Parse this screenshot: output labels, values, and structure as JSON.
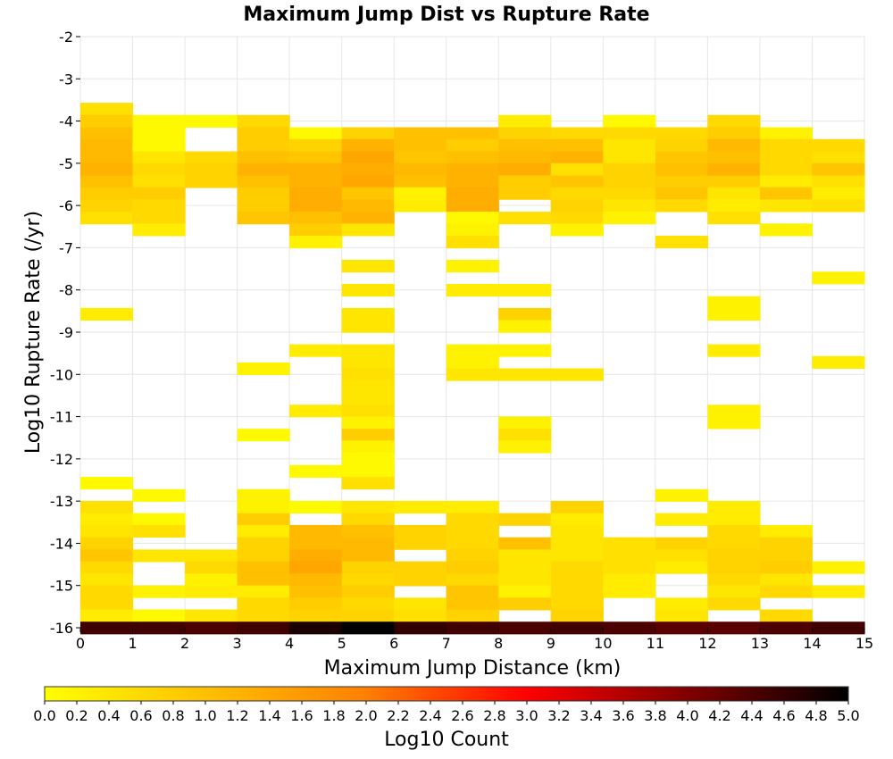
{
  "chart_data": {
    "type": "heatmap",
    "title": "Maximum Jump Dist vs Rupture Rate",
    "xlabel": "Maximum Jump Distance (km)",
    "ylabel": "Log10 Rupture Rate (/yr)",
    "xlim": [
      0,
      15
    ],
    "ylim": [
      -16,
      -2
    ],
    "x_ticks": [
      "0",
      "1",
      "2",
      "3",
      "4",
      "5",
      "6",
      "7",
      "8",
      "9",
      "10",
      "11",
      "12",
      "13",
      "14",
      "15"
    ],
    "y_ticks": [
      "-2",
      "-3",
      "-4",
      "-5",
      "-6",
      "-7",
      "-8",
      "-9",
      "-10",
      "-11",
      "-12",
      "-13",
      "-14",
      "-15",
      "-16"
    ],
    "x_bin_width": 1,
    "y_bin_height": 0.286,
    "grid": true,
    "colorbar": {
      "label": "Log10 Count",
      "min": 0.0,
      "max": 5.0,
      "ticks": [
        "0.0",
        "0.2",
        "0.4",
        "0.6",
        "0.8",
        "1.0",
        "1.2",
        "1.4",
        "1.6",
        "1.8",
        "2.0",
        "2.2",
        "2.4",
        "2.6",
        "2.8",
        "3.0",
        "3.2",
        "3.4",
        "3.6",
        "3.8",
        "4.0",
        "4.2",
        "4.4",
        "4.6",
        "4.8",
        "5.0"
      ],
      "colors": [
        "#ffff00",
        "#ffc000",
        "#ff8000",
        "#ff0000",
        "#800000",
        "#000000"
      ]
    },
    "cells_columns": [
      "x_start",
      "log10_rate_center",
      "log10_count"
    ],
    "cells": [
      [
        0,
        -3.71,
        0.5
      ],
      [
        0,
        -4.0,
        0.8
      ],
      [
        0,
        -4.29,
        1.0
      ],
      [
        0,
        -4.57,
        1.1
      ],
      [
        0,
        -4.86,
        1.1
      ],
      [
        0,
        -5.14,
        1.2
      ],
      [
        0,
        -5.43,
        1.0
      ],
      [
        0,
        -5.71,
        0.8
      ],
      [
        0,
        -6.0,
        0.7
      ],
      [
        0,
        -6.29,
        0.5
      ],
      [
        0,
        -8.57,
        0.3
      ],
      [
        0,
        -12.57,
        0.1
      ],
      [
        0,
        -13.14,
        0.5
      ],
      [
        0,
        -13.43,
        0.3
      ],
      [
        0,
        -13.71,
        0.4
      ],
      [
        0,
        -14.0,
        0.7
      ],
      [
        0,
        -14.29,
        0.9
      ],
      [
        0,
        -14.57,
        0.6
      ],
      [
        0,
        -14.86,
        0.4
      ],
      [
        0,
        -15.14,
        0.6
      ],
      [
        0,
        -15.43,
        0.6
      ],
      [
        0,
        -15.71,
        0.3
      ],
      [
        0,
        -16.0,
        4.5
      ],
      [
        1,
        -4.0,
        0.1
      ],
      [
        1,
        -4.29,
        0.1
      ],
      [
        1,
        -4.57,
        0.1
      ],
      [
        1,
        -4.86,
        0.4
      ],
      [
        1,
        -5.14,
        0.6
      ],
      [
        1,
        -5.43,
        0.5
      ],
      [
        1,
        -5.71,
        0.8
      ],
      [
        1,
        -6.0,
        0.6
      ],
      [
        1,
        -6.29,
        0.6
      ],
      [
        1,
        -6.57,
        0.3
      ],
      [
        1,
        -12.86,
        0.1
      ],
      [
        1,
        -13.43,
        0.1
      ],
      [
        1,
        -13.71,
        0.5
      ],
      [
        1,
        -14.29,
        0.4
      ],
      [
        1,
        -15.14,
        0.2
      ],
      [
        1,
        -15.71,
        0.1
      ],
      [
        1,
        -16.0,
        4.5
      ],
      [
        2,
        -4.0,
        0.1
      ],
      [
        2,
        -4.86,
        0.6
      ],
      [
        2,
        -5.14,
        0.7
      ],
      [
        2,
        -5.43,
        0.7
      ],
      [
        2,
        -14.29,
        0.4
      ],
      [
        2,
        -14.57,
        0.6
      ],
      [
        2,
        -14.86,
        0.2
      ],
      [
        2,
        -15.14,
        0.3
      ],
      [
        2,
        -15.71,
        0.4
      ],
      [
        2,
        -16.0,
        4.4
      ],
      [
        3,
        -4.0,
        0.6
      ],
      [
        3,
        -4.29,
        0.8
      ],
      [
        3,
        -4.57,
        0.8
      ],
      [
        3,
        -4.86,
        1.0
      ],
      [
        3,
        -5.14,
        1.2
      ],
      [
        3,
        -5.43,
        1.0
      ],
      [
        3,
        -5.71,
        0.8
      ],
      [
        3,
        -6.0,
        0.8
      ],
      [
        3,
        -6.29,
        0.9
      ],
      [
        3,
        -9.86,
        0.2
      ],
      [
        3,
        -11.43,
        0.1
      ],
      [
        3,
        -12.86,
        0.2
      ],
      [
        3,
        -13.14,
        0.2
      ],
      [
        3,
        -13.43,
        0.8
      ],
      [
        3,
        -13.71,
        0.3
      ],
      [
        3,
        -14.0,
        0.7
      ],
      [
        3,
        -14.29,
        0.7
      ],
      [
        3,
        -14.57,
        1.0
      ],
      [
        3,
        -14.86,
        1.0
      ],
      [
        3,
        -15.14,
        0.3
      ],
      [
        3,
        -15.43,
        0.6
      ],
      [
        3,
        -15.71,
        0.6
      ],
      [
        3,
        -16.0,
        4.5
      ],
      [
        4,
        -4.29,
        0.1
      ],
      [
        4,
        -4.57,
        0.7
      ],
      [
        4,
        -4.86,
        0.9
      ],
      [
        4,
        -5.14,
        1.2
      ],
      [
        4,
        -5.43,
        1.2
      ],
      [
        4,
        -5.71,
        1.3
      ],
      [
        4,
        -6.0,
        1.3
      ],
      [
        4,
        -6.29,
        1.0
      ],
      [
        4,
        -6.57,
        0.8
      ],
      [
        4,
        -6.86,
        0.2
      ],
      [
        4,
        -9.43,
        0.3
      ],
      [
        4,
        -10.86,
        0.3
      ],
      [
        4,
        -12.29,
        0.1
      ],
      [
        4,
        -13.14,
        0.1
      ],
      [
        4,
        -13.71,
        1.1
      ],
      [
        4,
        -14.0,
        1.1
      ],
      [
        4,
        -14.29,
        1.3
      ],
      [
        4,
        -14.57,
        1.4
      ],
      [
        4,
        -14.86,
        1.1
      ],
      [
        4,
        -15.14,
        1.0
      ],
      [
        4,
        -15.43,
        0.8
      ],
      [
        4,
        -15.71,
        0.7
      ],
      [
        4,
        -16.0,
        4.8
      ],
      [
        5,
        -4.29,
        0.7
      ],
      [
        5,
        -4.57,
        1.2
      ],
      [
        5,
        -4.86,
        1.4
      ],
      [
        5,
        -5.14,
        1.3
      ],
      [
        5,
        -5.43,
        1.4
      ],
      [
        5,
        -5.71,
        0.9
      ],
      [
        5,
        -6.0,
        1.1
      ],
      [
        5,
        -6.29,
        1.2
      ],
      [
        5,
        -6.57,
        0.4
      ],
      [
        5,
        -7.43,
        0.4
      ],
      [
        5,
        -8.0,
        0.4
      ],
      [
        5,
        -8.57,
        0.4
      ],
      [
        5,
        -8.86,
        0.4
      ],
      [
        5,
        -9.43,
        0.4
      ],
      [
        5,
        -9.71,
        0.4
      ],
      [
        5,
        -10.0,
        0.5
      ],
      [
        5,
        -10.29,
        0.4
      ],
      [
        5,
        -10.57,
        0.4
      ],
      [
        5,
        -10.86,
        0.5
      ],
      [
        5,
        -11.14,
        0.2
      ],
      [
        5,
        -11.43,
        0.8
      ],
      [
        5,
        -11.71,
        0.2
      ],
      [
        5,
        -12.0,
        0.1
      ],
      [
        5,
        -12.29,
        0.1
      ],
      [
        5,
        -12.57,
        0.5
      ],
      [
        5,
        -13.14,
        0.4
      ],
      [
        5,
        -13.43,
        0.6
      ],
      [
        5,
        -13.71,
        1.0
      ],
      [
        5,
        -14.0,
        1.1
      ],
      [
        5,
        -14.29,
        1.1
      ],
      [
        5,
        -14.57,
        0.7
      ],
      [
        5,
        -14.86,
        0.6
      ],
      [
        5,
        -15.14,
        0.8
      ],
      [
        5,
        -15.43,
        0.6
      ],
      [
        5,
        -15.71,
        0.7
      ],
      [
        5,
        -16.0,
        5.0
      ],
      [
        6,
        -4.29,
        1.0
      ],
      [
        6,
        -4.57,
        1.0
      ],
      [
        6,
        -4.86,
        0.9
      ],
      [
        6,
        -5.14,
        1.1
      ],
      [
        6,
        -5.43,
        1.0
      ],
      [
        6,
        -5.71,
        0.2
      ],
      [
        6,
        -6.0,
        0.3
      ],
      [
        6,
        -13.14,
        0.3
      ],
      [
        6,
        -13.71,
        0.7
      ],
      [
        6,
        -14.0,
        0.7
      ],
      [
        6,
        -14.57,
        0.7
      ],
      [
        6,
        -14.86,
        0.7
      ],
      [
        6,
        -15.43,
        0.4
      ],
      [
        6,
        -15.71,
        0.5
      ],
      [
        6,
        -16.0,
        4.6
      ],
      [
        7,
        -4.29,
        1.0
      ],
      [
        7,
        -4.57,
        0.8
      ],
      [
        7,
        -4.86,
        1.0
      ],
      [
        7,
        -5.14,
        1.2
      ],
      [
        7,
        -5.43,
        1.2
      ],
      [
        7,
        -5.71,
        1.3
      ],
      [
        7,
        -6.0,
        1.3
      ],
      [
        7,
        -6.29,
        0.1
      ],
      [
        7,
        -6.57,
        0.2
      ],
      [
        7,
        -6.86,
        0.5
      ],
      [
        7,
        -7.43,
        0.2
      ],
      [
        7,
        -8.0,
        0.3
      ],
      [
        7,
        -9.43,
        0.2
      ],
      [
        7,
        -9.71,
        0.2
      ],
      [
        7,
        -10.0,
        0.4
      ],
      [
        7,
        -13.14,
        0.3
      ],
      [
        7,
        -13.43,
        0.6
      ],
      [
        7,
        -13.71,
        0.6
      ],
      [
        7,
        -14.0,
        0.6
      ],
      [
        7,
        -14.29,
        0.7
      ],
      [
        7,
        -14.57,
        0.8
      ],
      [
        7,
        -14.86,
        0.6
      ],
      [
        7,
        -15.14,
        0.9
      ],
      [
        7,
        -15.43,
        0.9
      ],
      [
        7,
        -15.71,
        0.7
      ],
      [
        7,
        -16.0,
        4.5
      ],
      [
        8,
        -4.0,
        0.3
      ],
      [
        8,
        -4.29,
        0.7
      ],
      [
        8,
        -4.57,
        1.0
      ],
      [
        8,
        -4.86,
        1.1
      ],
      [
        8,
        -5.14,
        1.3
      ],
      [
        8,
        -5.43,
        0.8
      ],
      [
        8,
        -5.71,
        0.8
      ],
      [
        8,
        -6.29,
        0.5
      ],
      [
        8,
        -8.0,
        0.3
      ],
      [
        8,
        -8.57,
        0.7
      ],
      [
        8,
        -8.86,
        0.2
      ],
      [
        8,
        -9.43,
        0.2
      ],
      [
        8,
        -10.0,
        0.4
      ],
      [
        8,
        -11.14,
        0.2
      ],
      [
        8,
        -11.43,
        0.5
      ],
      [
        8,
        -11.71,
        0.2
      ],
      [
        8,
        -13.43,
        0.7
      ],
      [
        8,
        -14.0,
        1.0
      ],
      [
        8,
        -14.29,
        0.4
      ],
      [
        8,
        -14.57,
        0.4
      ],
      [
        8,
        -14.86,
        0.4
      ],
      [
        8,
        -15.14,
        0.2
      ],
      [
        8,
        -15.43,
        0.8
      ],
      [
        8,
        -16.0,
        4.4
      ],
      [
        9,
        -4.29,
        0.6
      ],
      [
        9,
        -4.57,
        1.0
      ],
      [
        9,
        -4.86,
        1.2
      ],
      [
        9,
        -5.14,
        0.5
      ],
      [
        9,
        -5.43,
        0.9
      ],
      [
        9,
        -5.71,
        0.6
      ],
      [
        9,
        -6.0,
        0.7
      ],
      [
        9,
        -6.29,
        0.6
      ],
      [
        9,
        -6.57,
        0.2
      ],
      [
        9,
        -10.0,
        0.4
      ],
      [
        9,
        -13.14,
        0.7
      ],
      [
        9,
        -13.43,
        0.3
      ],
      [
        9,
        -13.71,
        0.4
      ],
      [
        9,
        -14.0,
        0.4
      ],
      [
        9,
        -14.29,
        0.4
      ],
      [
        9,
        -14.57,
        0.6
      ],
      [
        9,
        -14.86,
        0.6
      ],
      [
        9,
        -15.14,
        0.6
      ],
      [
        9,
        -15.43,
        0.6
      ],
      [
        9,
        -15.71,
        0.7
      ],
      [
        9,
        -16.0,
        4.5
      ],
      [
        10,
        -4.0,
        0.1
      ],
      [
        10,
        -4.29,
        0.6
      ],
      [
        10,
        -4.57,
        0.4
      ],
      [
        10,
        -4.86,
        0.4
      ],
      [
        10,
        -5.14,
        0.7
      ],
      [
        10,
        -5.43,
        0.7
      ],
      [
        10,
        -5.71,
        0.6
      ],
      [
        10,
        -6.0,
        0.4
      ],
      [
        10,
        -6.29,
        0.2
      ],
      [
        10,
        -14.0,
        0.5
      ],
      [
        10,
        -14.29,
        0.5
      ],
      [
        10,
        -14.57,
        0.5
      ],
      [
        10,
        -14.86,
        0.3
      ],
      [
        10,
        -15.14,
        0.3
      ],
      [
        10,
        -16.0,
        4.4
      ],
      [
        11,
        -4.29,
        0.6
      ],
      [
        11,
        -4.57,
        0.7
      ],
      [
        11,
        -4.86,
        0.9
      ],
      [
        11,
        -5.14,
        1.0
      ],
      [
        11,
        -5.43,
        0.8
      ],
      [
        11,
        -5.71,
        0.9
      ],
      [
        11,
        -6.0,
        0.6
      ],
      [
        11,
        -6.86,
        0.5
      ],
      [
        11,
        -12.86,
        0.2
      ],
      [
        11,
        -13.43,
        0.3
      ],
      [
        11,
        -14.0,
        0.7
      ],
      [
        11,
        -14.29,
        0.5
      ],
      [
        11,
        -14.57,
        0.3
      ],
      [
        11,
        -15.43,
        0.3
      ],
      [
        11,
        -15.71,
        0.4
      ],
      [
        11,
        -16.0,
        4.3
      ],
      [
        12,
        -4.0,
        0.6
      ],
      [
        12,
        -4.29,
        0.8
      ],
      [
        12,
        -4.57,
        1.1
      ],
      [
        12,
        -4.86,
        1.0
      ],
      [
        12,
        -5.14,
        1.2
      ],
      [
        12,
        -5.43,
        0.8
      ],
      [
        12,
        -5.71,
        0.4
      ],
      [
        12,
        -6.0,
        0.3
      ],
      [
        12,
        -6.29,
        0.5
      ],
      [
        12,
        -8.29,
        0.2
      ],
      [
        12,
        -8.57,
        0.2
      ],
      [
        12,
        -9.43,
        0.3
      ],
      [
        12,
        -10.86,
        0.2
      ],
      [
        12,
        -11.14,
        0.2
      ],
      [
        12,
        -13.14,
        0.3
      ],
      [
        12,
        -13.43,
        0.3
      ],
      [
        12,
        -13.71,
        0.6
      ],
      [
        12,
        -14.0,
        0.6
      ],
      [
        12,
        -14.29,
        0.7
      ],
      [
        12,
        -14.57,
        0.7
      ],
      [
        12,
        -14.86,
        0.6
      ],
      [
        12,
        -15.14,
        0.4
      ],
      [
        12,
        -15.43,
        0.6
      ],
      [
        12,
        -16.0,
        4.3
      ],
      [
        13,
        -4.29,
        0.2
      ],
      [
        13,
        -4.57,
        0.6
      ],
      [
        13,
        -4.86,
        0.6
      ],
      [
        13,
        -5.14,
        0.6
      ],
      [
        13,
        -5.43,
        0.3
      ],
      [
        13,
        -5.71,
        0.9
      ],
      [
        13,
        -6.0,
        0.4
      ],
      [
        13,
        -6.57,
        0.2
      ],
      [
        13,
        -13.71,
        0.3
      ],
      [
        13,
        -14.0,
        0.7
      ],
      [
        13,
        -14.29,
        0.7
      ],
      [
        13,
        -14.57,
        0.8
      ],
      [
        13,
        -14.86,
        0.4
      ],
      [
        13,
        -15.14,
        0.6
      ],
      [
        13,
        -15.71,
        0.6
      ],
      [
        13,
        -16.0,
        4.4
      ],
      [
        14,
        -4.57,
        0.6
      ],
      [
        14,
        -4.86,
        0.5
      ],
      [
        14,
        -5.14,
        0.9
      ],
      [
        14,
        -5.43,
        0.5
      ],
      [
        14,
        -5.71,
        0.3
      ],
      [
        14,
        -6.0,
        0.5
      ],
      [
        14,
        -7.71,
        0.2
      ],
      [
        14,
        -9.71,
        0.3
      ],
      [
        14,
        -14.57,
        0.2
      ],
      [
        14,
        -15.14,
        0.3
      ],
      [
        14,
        -16.0,
        4.5
      ]
    ]
  }
}
